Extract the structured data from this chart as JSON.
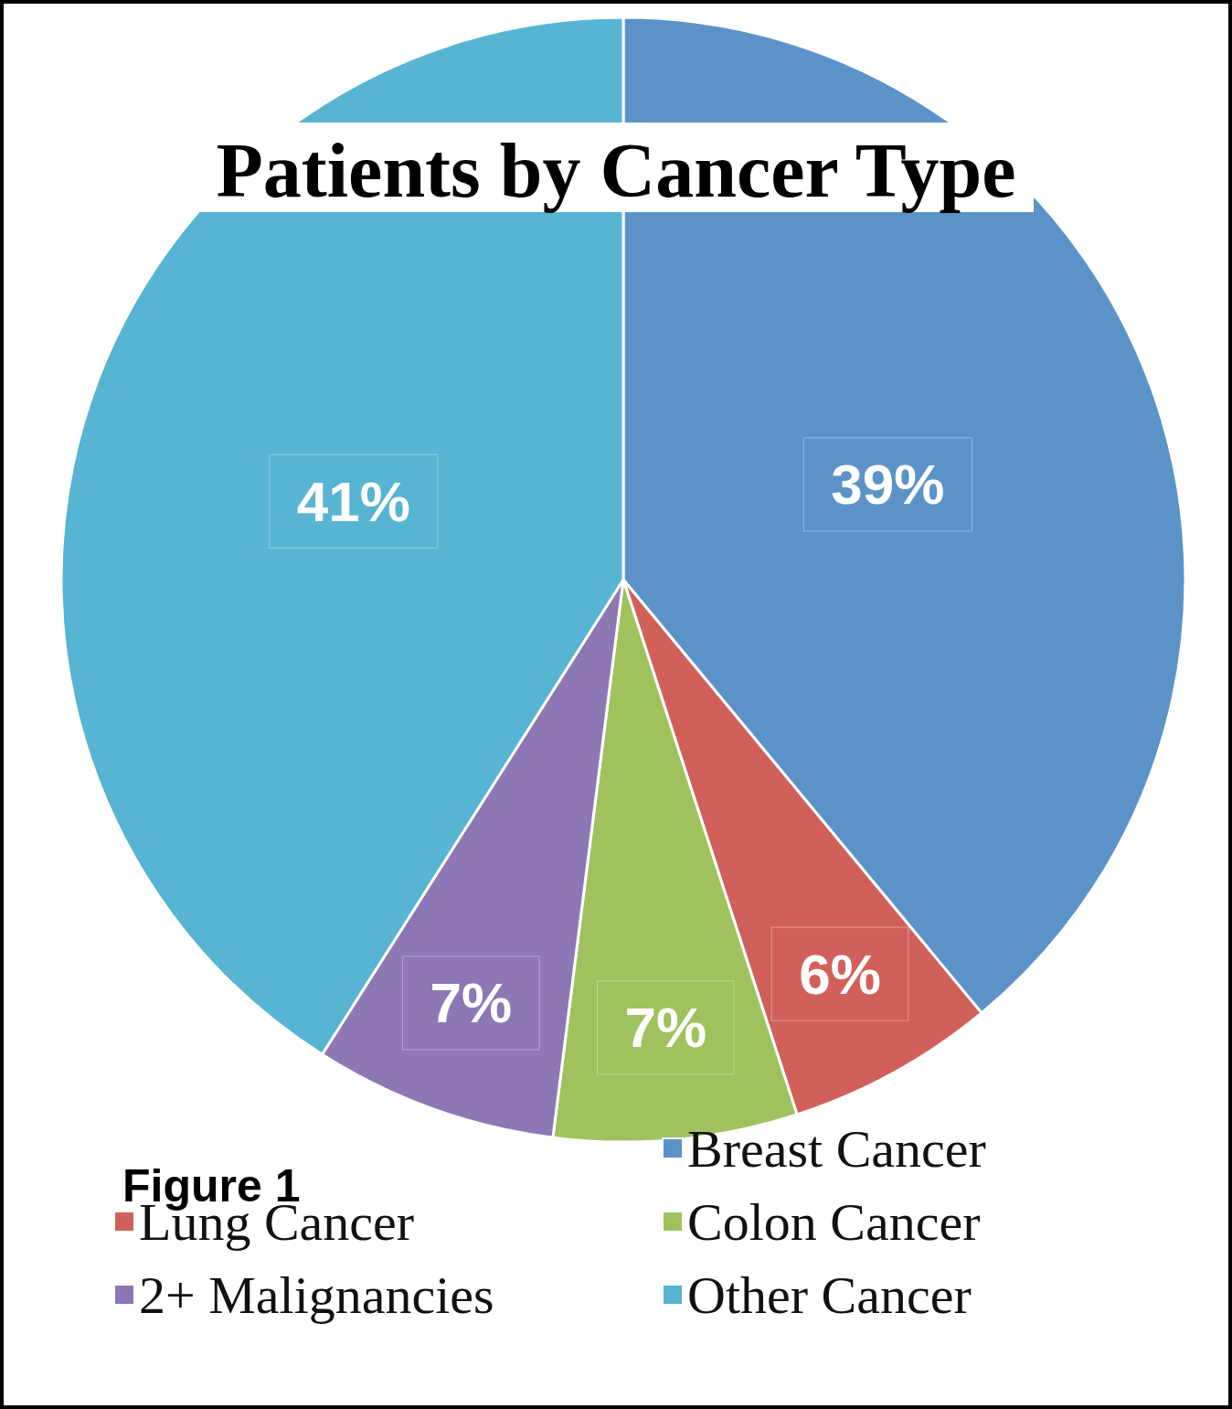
{
  "chart_data": {
    "type": "pie",
    "title": "Patients by Cancer Type",
    "categories": [
      "Breast Cancer",
      "Lung Cancer",
      "Colon Cancer",
      "2+ Malignancies",
      "Other Cancer"
    ],
    "values": [
      39,
      6,
      7,
      7,
      41
    ],
    "value_labels": [
      "39%",
      "6%",
      "7%",
      "7%",
      "41%"
    ],
    "colors": [
      "#5b93c9",
      "#d2605a",
      "#9fc25e",
      "#8d78b5",
      "#57b4d2"
    ],
    "legend": "bottom",
    "annotations": [
      "Figure 1"
    ]
  }
}
